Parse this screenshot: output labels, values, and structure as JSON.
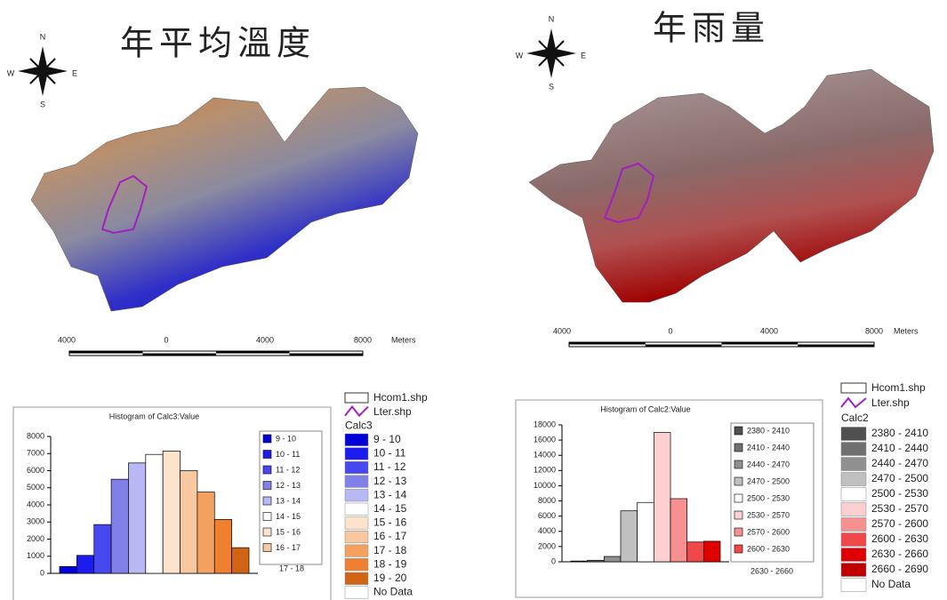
{
  "maps": [
    {
      "title": "年平均溫度",
      "compass": {
        "n": "N",
        "e": "E",
        "s": "S",
        "w": "W"
      },
      "scale_labels": [
        "4000",
        "0",
        "4000",
        "8000"
      ],
      "scale_unit": "Meters",
      "legend": {
        "layers": [
          "Hcom1.shp",
          "Lter.shp"
        ],
        "field": "Calc3",
        "items": [
          {
            "label": "9 - 10",
            "color": "#0000d8"
          },
          {
            "label": "10 - 11",
            "color": "#1c1cf0"
          },
          {
            "label": "11 - 12",
            "color": "#4848f0"
          },
          {
            "label": "12 - 13",
            "color": "#8080e8"
          },
          {
            "label": "13 - 14",
            "color": "#b8b8f4"
          },
          {
            "label": "14 - 15",
            "color": "#ffffff"
          },
          {
            "label": "15 - 16",
            "color": "#fde2cc"
          },
          {
            "label": "16 - 17",
            "color": "#f8c8a0"
          },
          {
            "label": "17 - 18",
            "color": "#f4a060"
          },
          {
            "label": "18 - 19",
            "color": "#f08030"
          },
          {
            "label": "19 - 20",
            "color": "#d06414"
          },
          {
            "label": "No Data",
            "color": "#ffffff"
          }
        ]
      }
    },
    {
      "title": "年雨量",
      "compass": {
        "n": "N",
        "e": "E",
        "s": "S",
        "w": "W"
      },
      "scale_labels": [
        "4000",
        "0",
        "4000",
        "8000"
      ],
      "scale_unit": "Meters",
      "legend": {
        "layers": [
          "Hcom1.shp",
          "Lter.shp"
        ],
        "field": "Calc2",
        "items": [
          {
            "label": "2380 - 2410",
            "color": "#505050"
          },
          {
            "label": "2410 - 2440",
            "color": "#707070"
          },
          {
            "label": "2440 - 2470",
            "color": "#909090"
          },
          {
            "label": "2470 - 2500",
            "color": "#c0c0c0"
          },
          {
            "label": "2500 - 2530",
            "color": "#ffffff"
          },
          {
            "label": "2530 - 2570",
            "color": "#fcd0d0"
          },
          {
            "label": "2570 - 2600",
            "color": "#f89090"
          },
          {
            "label": "2600 - 2630",
            "color": "#f04848"
          },
          {
            "label": "2630 - 2660",
            "color": "#e00000"
          },
          {
            "label": "2660 - 2690",
            "color": "#c00000"
          },
          {
            "label": "No Data",
            "color": "#ffffff"
          }
        ]
      }
    }
  ],
  "chart_data": [
    {
      "type": "bar",
      "title": "Histogram of Calc3:Value",
      "categories": [
        "9 - 10",
        "10 - 11",
        "11 - 12",
        "12 - 13",
        "13 - 14",
        "14 - 15",
        "15 - 16",
        "16 - 17",
        "17 - 18",
        "18 - 19",
        "19 - 20"
      ],
      "values": [
        400,
        1050,
        2850,
        5500,
        6450,
        6950,
        7150,
        6000,
        4750,
        3150,
        1500
      ],
      "colors": [
        "#0000d8",
        "#1c1cf0",
        "#4848f0",
        "#8080e8",
        "#b8b8f4",
        "#ffffff",
        "#fde2cc",
        "#f8c8a0",
        "#f4a060",
        "#f08030",
        "#d06414"
      ],
      "ylim": [
        0,
        8000
      ],
      "yticks": [
        0,
        1000,
        2000,
        3000,
        4000,
        5000,
        6000,
        7000,
        8000
      ]
    },
    {
      "type": "bar",
      "title": "Histogram of Calc2:Value",
      "categories": [
        "2380 - 2410",
        "2410 - 2440",
        "2440 - 2470",
        "2470 - 2500",
        "2500 - 2530",
        "2530 - 2570",
        "2570 - 2600",
        "2600 - 2630",
        "2630 - 2660"
      ],
      "values": [
        100,
        200,
        700,
        6700,
        7800,
        17000,
        8300,
        2600,
        2700
      ],
      "colors": [
        "#505050",
        "#707070",
        "#909090",
        "#c0c0c0",
        "#ffffff",
        "#fcd0d0",
        "#f89090",
        "#f04848",
        "#e00000"
      ],
      "ylim": [
        0,
        18000
      ],
      "yticks": [
        0,
        2000,
        4000,
        6000,
        8000,
        10000,
        12000,
        14000,
        16000,
        18000
      ]
    }
  ]
}
